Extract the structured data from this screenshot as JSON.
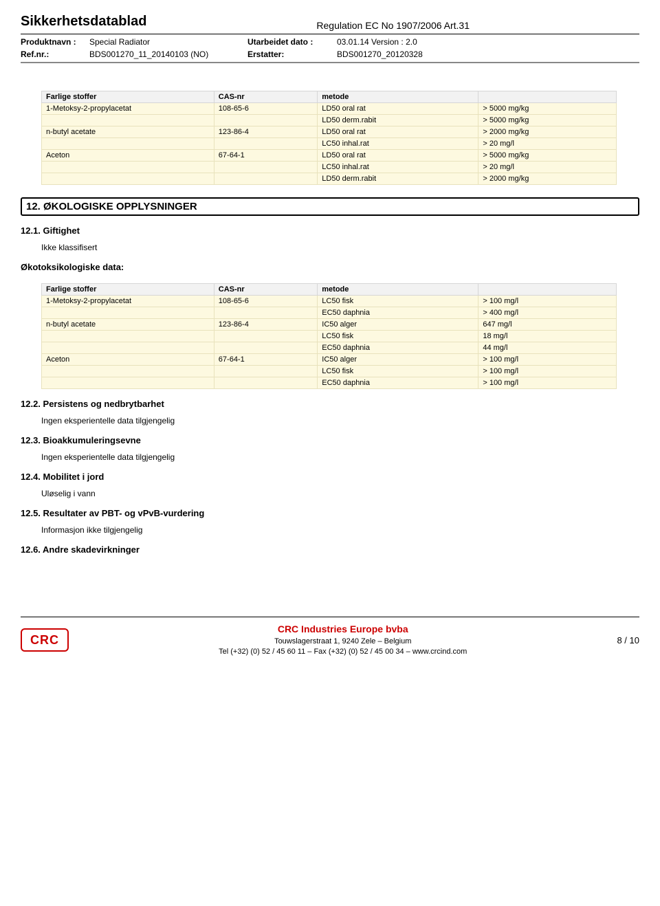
{
  "header": {
    "title": "Sikkerhetsdatablad",
    "regulation": "Regulation EC No 1907/2006 Art.31",
    "prod_name_label": "Produktnavn :",
    "prod_name": "Special Radiator",
    "refnr_label": "Ref.nr.:",
    "refnr": "BDS001270_11_20140103 (NO)",
    "utarb_label": "Utarbeidet dato :",
    "utarb_val": "03.01.14 Version : 2.0",
    "erstatter_label": "Erstatter:",
    "erstatter_val": "BDS001270_20120328"
  },
  "table1": {
    "headers": [
      "Farlige stoffer",
      "CAS-nr",
      "metode",
      ""
    ],
    "rows": [
      [
        "1-Metoksy-2-propylacetat",
        "108-65-6",
        "LD50 oral rat",
        "> 5000 mg/kg"
      ],
      [
        "",
        "",
        "LD50 derm.rabit",
        "> 5000 mg/kg"
      ],
      [
        "n-butyl acetate",
        "123-86-4",
        "LD50 oral rat",
        "> 2000 mg/kg"
      ],
      [
        "",
        "",
        "LC50 inhal.rat",
        "> 20 mg/l"
      ],
      [
        "Aceton",
        "67-64-1",
        "LD50 oral rat",
        "> 5000 mg/kg"
      ],
      [
        "",
        "",
        "LC50 inhal.rat",
        "> 20 mg/l"
      ],
      [
        "",
        "",
        "LD50 derm.rabit",
        "> 2000 mg/kg"
      ]
    ]
  },
  "section12": {
    "title": "12. ØKOLOGISKE OPPLYSNINGER",
    "s1_title": "12.1. Giftighet",
    "s1_text": "Ikke klassifisert",
    "eco_title": "Økotoksikologiske data:",
    "s2_title": "12.2. Persistens og nedbrytbarhet",
    "s2_text": "Ingen eksperientelle data tilgjengelig",
    "s3_title": "12.3. Bioakkumuleringsevne",
    "s3_text": "Ingen eksperientelle data tilgjengelig",
    "s4_title": "12.4. Mobilitet i jord",
    "s4_text": "Uløselig i vann",
    "s5_title": "12.5. Resultater av PBT- og vPvB-vurdering",
    "s5_text": "Informasjon ikke tilgjengelig",
    "s6_title": "12.6. Andre skadevirkninger"
  },
  "table2": {
    "headers": [
      "Farlige stoffer",
      "CAS-nr",
      "metode",
      ""
    ],
    "rows": [
      [
        "1-Metoksy-2-propylacetat",
        "108-65-6",
        "LC50 fisk",
        "> 100 mg/l"
      ],
      [
        "",
        "",
        "EC50 daphnia",
        "> 400 mg/l"
      ],
      [
        "n-butyl acetate",
        "123-86-4",
        "IC50 alger",
        "647 mg/l"
      ],
      [
        "",
        "",
        "LC50 fisk",
        "18 mg/l"
      ],
      [
        "",
        "",
        "EC50 daphnia",
        "44 mg/l"
      ],
      [
        "Aceton",
        "67-64-1",
        "IC50 alger",
        "> 100 mg/l"
      ],
      [
        "",
        "",
        "LC50 fisk",
        "> 100 mg/l"
      ],
      [
        "",
        "",
        "EC50 daphnia",
        "> 100 mg/l"
      ]
    ]
  },
  "footer": {
    "logo": "CRC",
    "company": "CRC Industries Europe bvba",
    "address": "Touwslagerstraat 1, 9240 Zele – Belgium",
    "contact": "Tel (+32) (0) 52 / 45 60 11 – Fax (+32) (0) 52 / 45 00 34 – www.crcind.com",
    "page": "8 / 10"
  }
}
